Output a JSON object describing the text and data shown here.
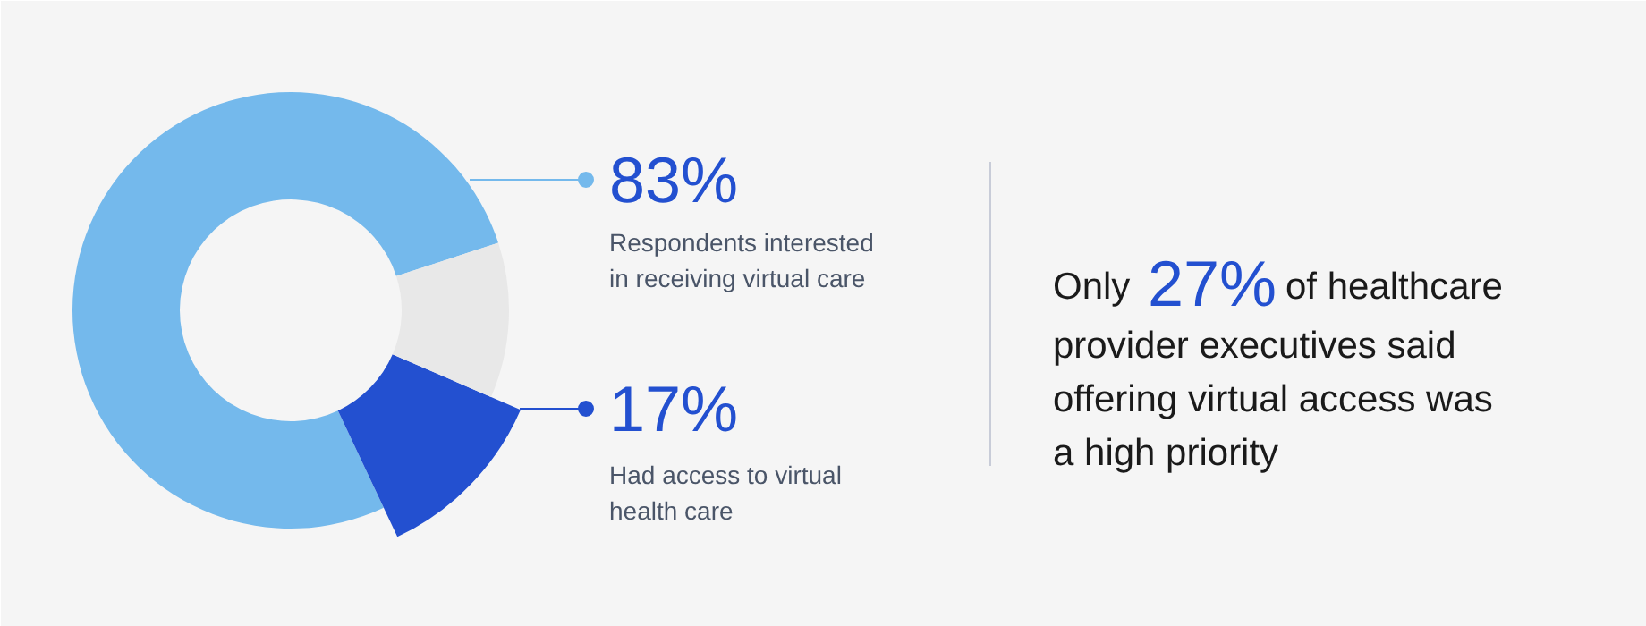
{
  "chart_data": {
    "type": "donut",
    "categories": [
      null,
      null,
      null
    ],
    "values": [
      77,
      11.5,
      11.5
    ],
    "colors": [
      "#74b9ec",
      "#2350d0",
      "#e8e8e8"
    ],
    "annotations": [
      "83%",
      "Respondents interested\nin receiving virtual care",
      "17%",
      "Had access to virtual\nhealth care",
      "Only",
      "27%",
      "of healthcare",
      "provider executives said\noffering virtual access was\na high priority"
    ]
  }
}
